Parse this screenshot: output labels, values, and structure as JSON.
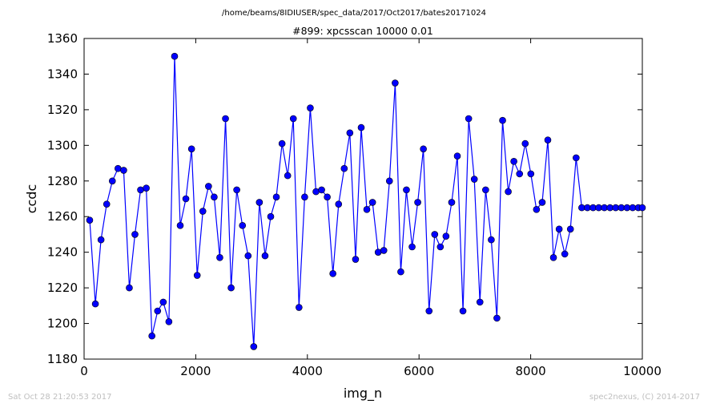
{
  "suptitle": "/home/beams/8IDIUSER/spec_data/2017/Oct2017/bates20171024",
  "footer": {
    "left": "Sat Oct 28 21:20:53 2017",
    "right": "spec2nexus, (C) 2014-2017"
  },
  "colors": {
    "line": "#0000ff",
    "marker": "#0000ff",
    "axes": "#000000",
    "footer": "#bfbfbf"
  },
  "chart_data": {
    "type": "line",
    "title": "#899: xpcsscan 10000 0.01",
    "xlabel": "img_n",
    "ylabel": "ccdc",
    "xlim": [
      0,
      10000
    ],
    "ylim": [
      1180,
      1360
    ],
    "xticks": [
      0,
      2000,
      4000,
      6000,
      8000,
      10000
    ],
    "yticks": [
      1180,
      1200,
      1220,
      1240,
      1260,
      1280,
      1300,
      1320,
      1340,
      1360
    ],
    "grid": false,
    "markers": true,
    "series": [
      {
        "x": [
          100,
          202,
          303,
          405,
          506,
          607,
          709,
          810,
          911,
          1012,
          1114,
          1215,
          1317,
          1418,
          1519,
          1621,
          1722,
          1823,
          1925,
          2026,
          2127,
          2229,
          2330,
          2431,
          2533,
          2634,
          2735,
          2837,
          2938,
          3039,
          3140,
          3242,
          3343,
          3444,
          3546,
          3647,
          3748,
          3850,
          3951,
          4052,
          4154,
          4255,
          4356,
          4457,
          4559,
          4660,
          4761,
          4863,
          4964,
          5065,
          5167,
          5268,
          5369,
          5470,
          5572,
          5673,
          5774,
          5876,
          5977,
          6078,
          6180,
          6281,
          6382,
          6483,
          6585,
          6686,
          6787,
          6889,
          6990,
          7091,
          7193,
          7294,
          7395,
          7497,
          7598,
          7699,
          7801,
          7902,
          8003,
          8104,
          8206,
          8307,
          8408,
          8510,
          8611,
          8712,
          8814,
          8915,
          9016,
          9118,
          9219,
          9320,
          9422,
          9523,
          9624,
          9726,
          9827,
          9928,
          10000
        ],
        "y": [
          1258,
          1211,
          1247,
          1267,
          1280,
          1287,
          1286,
          1220,
          1250,
          1275,
          1276,
          1193,
          1207,
          1212,
          1201,
          1350,
          1255,
          1270,
          1298,
          1227,
          1263,
          1277,
          1271,
          1237,
          1315,
          1220,
          1275,
          1255,
          1238,
          1187,
          1268,
          1238,
          1260,
          1271,
          1301,
          1283,
          1315,
          1209,
          1271,
          1321,
          1274,
          1275,
          1271,
          1228,
          1267,
          1287,
          1307,
          1236,
          1310,
          1264,
          1268,
          1240,
          1241,
          1280,
          1335,
          1229,
          1275,
          1243,
          1268,
          1298,
          1207,
          1250,
          1243,
          1249,
          1268,
          1294,
          1207,
          1315,
          1281,
          1212,
          1275,
          1247,
          1203,
          1314,
          1274,
          1291,
          1284,
          1301,
          1284,
          1264,
          1268,
          1303,
          1237,
          1253,
          1239,
          1253,
          1293,
          1265,
          1265,
          1265,
          1265,
          1265,
          1265,
          1265,
          1265,
          1265,
          1265,
          1265,
          1265
        ]
      }
    ]
  }
}
